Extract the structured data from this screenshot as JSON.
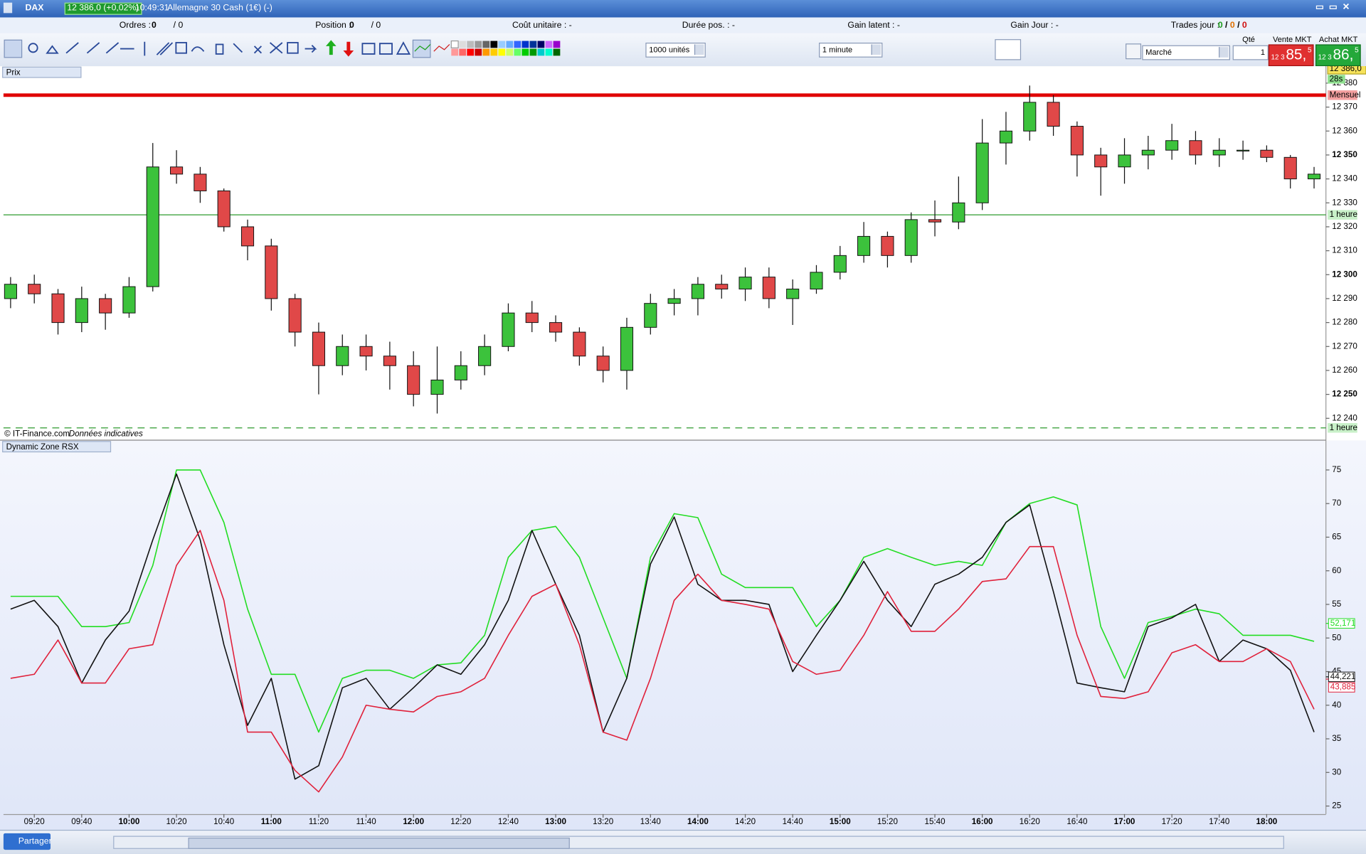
{
  "header": {
    "symbol": "DAX",
    "quote": "12 386,0 (+0,02%)",
    "time": "10:49:31",
    "instrument": "Allemagne 30 Cash (1€) (-)"
  },
  "info_bar": {
    "orders_label": "Ordres :",
    "orders": "0",
    "orders_total": "/ 0",
    "position_label": "Position :",
    "position": "0",
    "position_total": "/ 0",
    "unit_cost": "Coût unitaire : -",
    "duration": "Durée pos. : -",
    "latent": "Gain latent : -",
    "day_gain": "Gain Jour : -",
    "trades_label": "Trades jour :",
    "trades": [
      "0",
      "/",
      "0",
      "/",
      "0"
    ]
  },
  "toolbar": {
    "quantity_units": "1000 unités",
    "interval": "1 minute",
    "order_type": "Marché",
    "qty_label": "Qté",
    "qty": "1",
    "sell_label": "Vente MKT",
    "buy_label": "Achat MKT",
    "sell": {
      "prefix": "12 3",
      "big": "85,",
      "sup": "5"
    },
    "buy": {
      "prefix": "12 3",
      "big": "86,",
      "sup": "5"
    }
  },
  "footer": {
    "share": "Partager"
  },
  "chart_data": [
    {
      "type": "candlestick",
      "title": "Prix",
      "source": "© IT-Finance.com",
      "note": "Données indicatives",
      "countdown": "28s",
      "current_price": {
        "value": 12386,
        "label": "12 386,0"
      },
      "xlim": [
        "09:07",
        "18:25"
      ],
      "ylim": [
        12234.7,
        12382
      ],
      "yticks": [
        {
          "value": 12240,
          "label": "12 240"
        },
        {
          "value": 12250,
          "label": "12 250"
        },
        {
          "value": 12260,
          "label": "12 260"
        },
        {
          "value": 12270,
          "label": "12 270"
        },
        {
          "value": 12280,
          "label": "12 280"
        },
        {
          "value": 12290,
          "label": "12 290"
        },
        {
          "value": 12300,
          "label": "12 300"
        },
        {
          "value": 12310,
          "label": "12 310"
        },
        {
          "value": 12320,
          "label": "12 320"
        },
        {
          "value": 12330,
          "label": "12 330"
        },
        {
          "value": 12340,
          "label": "12 340"
        },
        {
          "value": 12350,
          "label": "12 350"
        },
        {
          "value": 12360,
          "label": "12 360"
        },
        {
          "value": 12370,
          "label": "12 370"
        },
        {
          "value": 12380,
          "label": "12 380"
        }
      ],
      "levels": [
        {
          "value": 12375,
          "label": "Mensuel",
          "color": "#e00000"
        },
        {
          "value": 12325,
          "label": "1 heure",
          "color": "#2e9b2e"
        },
        {
          "value": 12236,
          "label": "1 heure",
          "color": "#2e9b2e",
          "dashed": true
        }
      ],
      "x": [
        "09:10",
        "09:20",
        "09:30",
        "09:40",
        "09:50",
        "10:00",
        "10:10",
        "10:20",
        "10:30",
        "10:40",
        "10:50",
        "11:00",
        "11:10",
        "11:20",
        "11:30",
        "11:40",
        "11:50",
        "12:00",
        "12:10",
        "12:20",
        "12:30",
        "12:40",
        "12:50",
        "13:00",
        "13:10",
        "13:20",
        "13:30",
        "13:40",
        "13:50",
        "14:00",
        "14:10",
        "14:20",
        "14:30",
        "14:40",
        "14:50",
        "15:00",
        "15:10",
        "15:20",
        "15:30",
        "15:40",
        "15:50",
        "16:00",
        "16:10",
        "16:20",
        "16:30",
        "16:40",
        "16:50",
        "17:00",
        "17:10",
        "17:20",
        "17:30",
        "17:40",
        "17:50",
        "18:00",
        "18:10",
        "18:20"
      ],
      "open": [
        12290,
        12296,
        12292,
        12280,
        12290,
        12284,
        12295,
        12345,
        12342,
        12335,
        12320,
        12312,
        12290,
        12276,
        12262,
        12270,
        12266,
        12262,
        12250,
        12256,
        12262,
        12270,
        12284,
        12280,
        12276,
        12266,
        12260,
        12278,
        12288,
        12290,
        12296,
        12294,
        12299,
        12290,
        12294,
        12301,
        12308,
        12316,
        12308,
        12323,
        12322,
        12330,
        12355,
        12360,
        12372,
        12362,
        12350,
        12345,
        12350,
        12352,
        12356,
        12350,
        12352,
        12352,
        12349,
        12340
      ],
      "high": [
        12299,
        12300,
        12294,
        12295,
        12292,
        12299,
        12355,
        12352,
        12345,
        12336,
        12323,
        12315,
        12292,
        12280,
        12275,
        12275,
        12272,
        12268,
        12270,
        12268,
        12275,
        12288,
        12289,
        12283,
        12278,
        12270,
        12282,
        12292,
        12294,
        12299,
        12300,
        12303,
        12303,
        12298,
        12304,
        12312,
        12322,
        12318,
        12326,
        12331,
        12341,
        12365,
        12368,
        12379,
        12375,
        12364,
        12353,
        12357,
        12358,
        12363,
        12360,
        12357,
        12356,
        12354,
        12350,
        12345
      ],
      "low": [
        12286,
        12288,
        12275,
        12276,
        12277,
        12282,
        12293,
        12338,
        12330,
        12318,
        12306,
        12285,
        12270,
        12250,
        12258,
        12260,
        12252,
        12245,
        12242,
        12252,
        12258,
        12268,
        12276,
        12272,
        12262,
        12255,
        12252,
        12275,
        12283,
        12283,
        12290,
        12289,
        12286,
        12279,
        12292,
        12298,
        12305,
        12303,
        12305,
        12316,
        12319,
        12327,
        12346,
        12356,
        12358,
        12341,
        12333,
        12338,
        12344,
        12348,
        12346,
        12345,
        12348,
        12347,
        12336,
        12336
      ],
      "close": [
        12296,
        12292,
        12280,
        12290,
        12284,
        12295,
        12345,
        12342,
        12335,
        12320,
        12312,
        12290,
        12276,
        12262,
        12270,
        12266,
        12262,
        12250,
        12256,
        12262,
        12270,
        12284,
        12280,
        12276,
        12266,
        12260,
        12278,
        12288,
        12290,
        12296,
        12294,
        12299,
        12290,
        12294,
        12301,
        12308,
        12316,
        12308,
        12323,
        12322,
        12330,
        12355,
        12360,
        12372,
        12362,
        12350,
        12345,
        12350,
        12352,
        12356,
        12350,
        12352,
        12352,
        12349,
        12340,
        12342
      ]
    },
    {
      "type": "line",
      "title": "Dynamic Zone RSX",
      "xlim": [
        "09:07",
        "18:25"
      ],
      "ylim": [
        23.8,
        79.5
      ],
      "yticks": [
        25,
        30,
        35,
        40,
        45,
        50,
        55,
        60,
        65,
        70,
        75
      ],
      "xticks": [
        "09:20",
        "09:40",
        "10:00",
        "10:20",
        "10:40",
        "11:00",
        "11:20",
        "11:40",
        "12:00",
        "12:20",
        "12:40",
        "13:00",
        "13:20",
        "13:40",
        "14:00",
        "14:20",
        "14:40",
        "15:00",
        "15:20",
        "15:40",
        "16:00",
        "16:20",
        "16:40",
        "17:00",
        "17:20",
        "17:40",
        "18:00"
      ],
      "x": [
        "09:10",
        "09:20",
        "09:30",
        "09:40",
        "09:50",
        "10:00",
        "10:10",
        "10:20",
        "10:30",
        "10:40",
        "10:50",
        "11:00",
        "11:10",
        "11:20",
        "11:30",
        "11:40",
        "11:50",
        "12:00",
        "12:10",
        "12:20",
        "12:30",
        "12:40",
        "12:50",
        "13:00",
        "13:10",
        "13:20",
        "13:30",
        "13:40",
        "13:50",
        "14:00",
        "14:10",
        "14:20",
        "14:30",
        "14:40",
        "14:50",
        "15:00",
        "15:10",
        "15:20",
        "15:30",
        "15:40",
        "15:50",
        "16:00",
        "16:10",
        "16:20",
        "16:30",
        "16:40",
        "16:50",
        "17:00",
        "17:10",
        "17:20",
        "17:30",
        "17:40",
        "17:50",
        "18:00",
        "18:10",
        "18:20"
      ],
      "series": [
        {
          "color": "#22dd22",
          "values": [
            56.2,
            56.2,
            56.2,
            51.7,
            51.7,
            52.3,
            60.8,
            75,
            75,
            67.2,
            54.3,
            44.6,
            44.6,
            36,
            44,
            45.2,
            45.2,
            44,
            46,
            46.3,
            50.4,
            62,
            66,
            66.6,
            62,
            53,
            44,
            62,
            68.5,
            67.9,
            59.5,
            57.5,
            57.5,
            57.5,
            51.7,
            55.6,
            62,
            63.3,
            62,
            60.8,
            61.4,
            60.8,
            67.2,
            70,
            71,
            69.8,
            51.7,
            44,
            52.3,
            53.2,
            54.3,
            53.6,
            50.4,
            50.4,
            50.4,
            49.5
          ],
          "last": {
            "value": 52.171,
            "label": "52,171"
          }
        },
        {
          "color": "#111111",
          "values": [
            54.3,
            55.6,
            51.7,
            43.3,
            49.7,
            54,
            64.6,
            74.4,
            64.6,
            49,
            37,
            44,
            29,
            31,
            42.6,
            44,
            39.4,
            42.6,
            46,
            44.6,
            49,
            55.6,
            66,
            58,
            50.4,
            36,
            44,
            61,
            68,
            58,
            55.6,
            55.6,
            55,
            45,
            50.4,
            55.6,
            61.4,
            55.6,
            51.7,
            58,
            59.5,
            62,
            67.2,
            69.8,
            56.9,
            43.3,
            42.6,
            42,
            51.7,
            53,
            55,
            46.5,
            49.7,
            48.4,
            45.2,
            36
          ],
          "last": {
            "value": 44.221,
            "label": "44,221"
          }
        },
        {
          "color": "#e0203a",
          "values": [
            44,
            44.6,
            49.7,
            43.3,
            43.3,
            48.4,
            49,
            60.8,
            66,
            55.6,
            36,
            36,
            30.3,
            27.1,
            32.3,
            40,
            39.4,
            39,
            41.3,
            42,
            44,
            50.4,
            56.2,
            58,
            49,
            36,
            34.8,
            44,
            55.6,
            59.5,
            55.6,
            55,
            54.3,
            46.5,
            44.6,
            45.2,
            50.4,
            56.9,
            51,
            51,
            54.3,
            58.4,
            58.8,
            63.6,
            63.6,
            50.4,
            41.3,
            41,
            42,
            47.8,
            49,
            46.5,
            46.5,
            48.4,
            46.5,
            39.4
          ],
          "last": {
            "value": 43.885,
            "label": "43,885"
          }
        }
      ]
    }
  ]
}
